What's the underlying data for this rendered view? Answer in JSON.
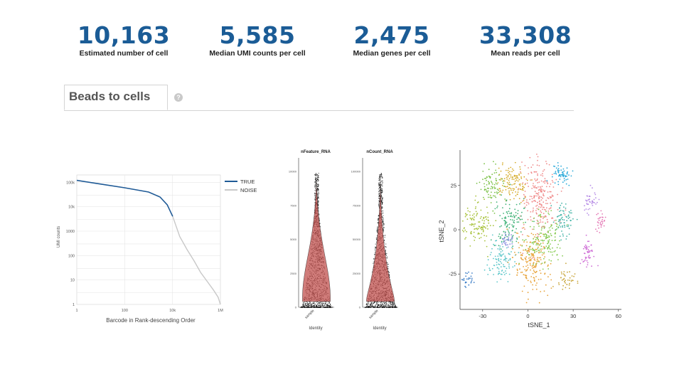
{
  "metrics": [
    {
      "value": "10,163",
      "label": "Estimated number of cell"
    },
    {
      "value": "5,585",
      "label": "Median UMI counts per cell"
    },
    {
      "value": "2,475",
      "label": "Median genes per cell"
    },
    {
      "value": "33,308",
      "label": "Mean reads per cell"
    }
  ],
  "tab": {
    "label": "Beads to cells",
    "help": "?"
  },
  "colors": {
    "accent": "#1b5c96",
    "true_line": "#1f5a96",
    "noise_line": "#c8c8c8",
    "violin": "#c0504d"
  },
  "chart_data": [
    {
      "type": "line",
      "xlabel": "Barcode in Rank-descending Order",
      "ylabel": "UMI counts",
      "x_scale": "log",
      "y_scale": "log",
      "xlim": [
        1,
        1000000
      ],
      "ylim": [
        1,
        200000
      ],
      "x_ticks": [
        "1",
        "100",
        "10k",
        "1M"
      ],
      "y_ticks": [
        "100k",
        "10k",
        "1000",
        "100",
        "10",
        "1"
      ],
      "legend": [
        "TRUE",
        "NOISE"
      ],
      "legend_position": "top-right",
      "grid": true,
      "series": [
        {
          "name": "TRUE",
          "x": [
            1,
            10,
            100,
            1000,
            3000,
            6000,
            10163
          ],
          "y": [
            120000,
            85000,
            60000,
            40000,
            25000,
            12000,
            4000
          ]
        },
        {
          "name": "NOISE",
          "x": [
            10163,
            20000,
            40000,
            80000,
            150000,
            300000,
            500000,
            800000,
            1000000
          ],
          "y": [
            4000,
            600,
            180,
            60,
            20,
            8,
            4,
            2,
            1
          ]
        }
      ]
    },
    {
      "type": "violin",
      "panels": [
        {
          "title": "nFeature_RNA",
          "xlabel": "Identity",
          "category": "sample",
          "y_ticks": [
            "10000",
            "7500",
            "5000",
            "2500",
            "0"
          ],
          "ylim": [
            0,
            11000
          ],
          "median": 2475
        },
        {
          "title": "nCount_RNA",
          "xlabel": "Identity",
          "category": "sample",
          "y_ticks": [
            "100000",
            "75000",
            "50000",
            "25000",
            "0"
          ],
          "ylim": [
            0,
            110000
          ],
          "median": 5585
        }
      ]
    },
    {
      "type": "scatter",
      "xlabel": "tSNE_1",
      "ylabel": "tSNE_2",
      "xlim": [
        -45,
        62
      ],
      "ylim": [
        -45,
        45
      ],
      "x_ticks": [
        -30,
        0,
        30,
        60
      ],
      "y_ticks": [
        25,
        0,
        -25
      ],
      "clusters": [
        {
          "color": "#f08c8c",
          "cx": 8,
          "cy": 18,
          "sx": 6,
          "sy": 11,
          "n": 240
        },
        {
          "color": "#d6ad2e",
          "cx": -11,
          "cy": 26,
          "sx": 5,
          "sy": 5,
          "n": 120
        },
        {
          "color": "#7dc24a",
          "cx": -25,
          "cy": 26,
          "sx": 4,
          "sy": 5,
          "n": 80
        },
        {
          "color": "#a8c23c",
          "cx": -34,
          "cy": 4,
          "sx": 5,
          "sy": 6,
          "n": 120
        },
        {
          "color": "#42b37a",
          "cx": -12,
          "cy": 5,
          "sx": 5,
          "sy": 7,
          "n": 120
        },
        {
          "color": "#5bc6c9",
          "cx": -18,
          "cy": -18,
          "sx": 4,
          "sy": 6,
          "n": 100
        },
        {
          "color": "#2aa9d9",
          "cx": 22,
          "cy": 31,
          "sx": 3.5,
          "sy": 3,
          "n": 60
        },
        {
          "color": "#47b5a8",
          "cx": 24,
          "cy": 5,
          "sx": 3,
          "sy": 6,
          "n": 70
        },
        {
          "color": "#8c8fe0",
          "cx": -14,
          "cy": -6,
          "sx": 2,
          "sy": 2,
          "n": 30
        },
        {
          "color": "#e8a33a",
          "cx": 3,
          "cy": -18,
          "sx": 6,
          "sy": 8,
          "n": 200
        },
        {
          "color": "#88cc55",
          "cx": 10,
          "cy": -5,
          "sx": 6,
          "sy": 7,
          "n": 160
        },
        {
          "color": "#cf6fd6",
          "cx": 40,
          "cy": -12,
          "sx": 2.5,
          "sy": 4,
          "n": 50
        },
        {
          "color": "#b88fe6",
          "cx": 42,
          "cy": 15,
          "sx": 3,
          "sy": 3,
          "n": 40
        },
        {
          "color": "#e478b5",
          "cx": 48,
          "cy": 5,
          "sx": 2,
          "sy": 2.5,
          "n": 30
        },
        {
          "color": "#3f7fc7",
          "cx": -40,
          "cy": -28,
          "sx": 2,
          "sy": 2,
          "n": 25
        },
        {
          "color": "#c9a53a",
          "cx": 25,
          "cy": -28,
          "sx": 3,
          "sy": 3,
          "n": 40
        }
      ]
    }
  ]
}
